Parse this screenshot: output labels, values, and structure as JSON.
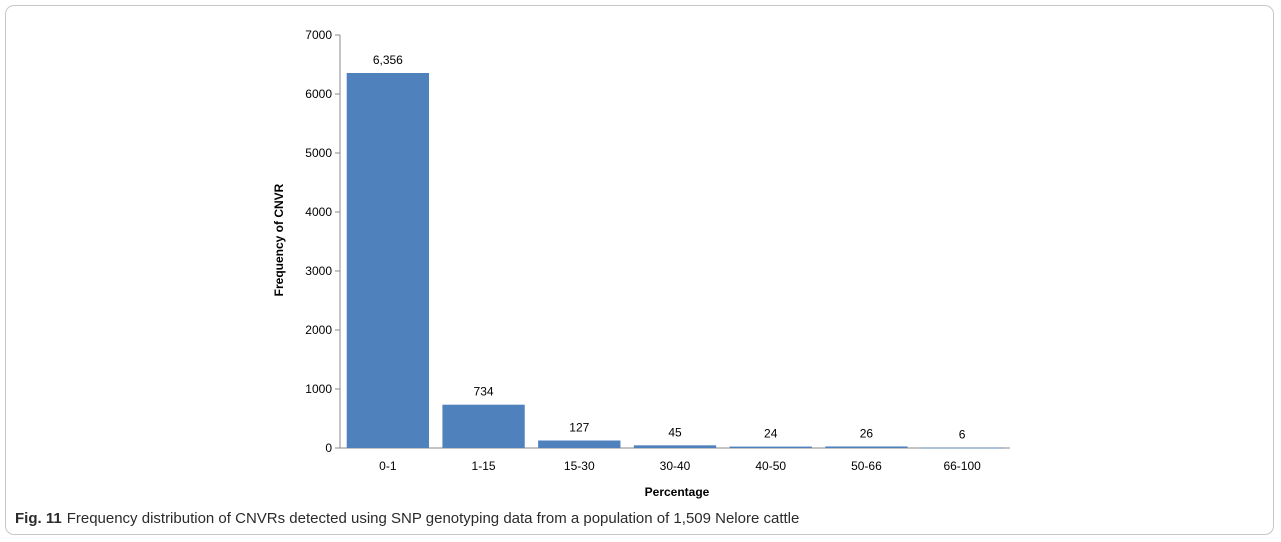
{
  "chart_data": {
    "type": "bar",
    "categories": [
      "0-1",
      "1-15",
      "15-30",
      "30-40",
      "40-50",
      "50-66",
      "66-100"
    ],
    "values": [
      6356,
      734,
      127,
      45,
      24,
      26,
      6
    ],
    "data_labels": [
      "6,356",
      "734",
      "127",
      "45",
      "24",
      "26",
      "6"
    ],
    "xlabel": "Percentage",
    "ylabel": "Frequency of CNVR",
    "ylim": [
      0,
      7000
    ],
    "yticks": [
      0,
      1000,
      2000,
      3000,
      4000,
      5000,
      6000,
      7000
    ],
    "bar_color": "#4f81bd",
    "grid": false,
    "legend": "none"
  },
  "caption": {
    "label": "Fig. 11",
    "text": "Frequency distribution of CNVRs detected using SNP genotyping data from a population of 1,509 Nelore cattle"
  }
}
